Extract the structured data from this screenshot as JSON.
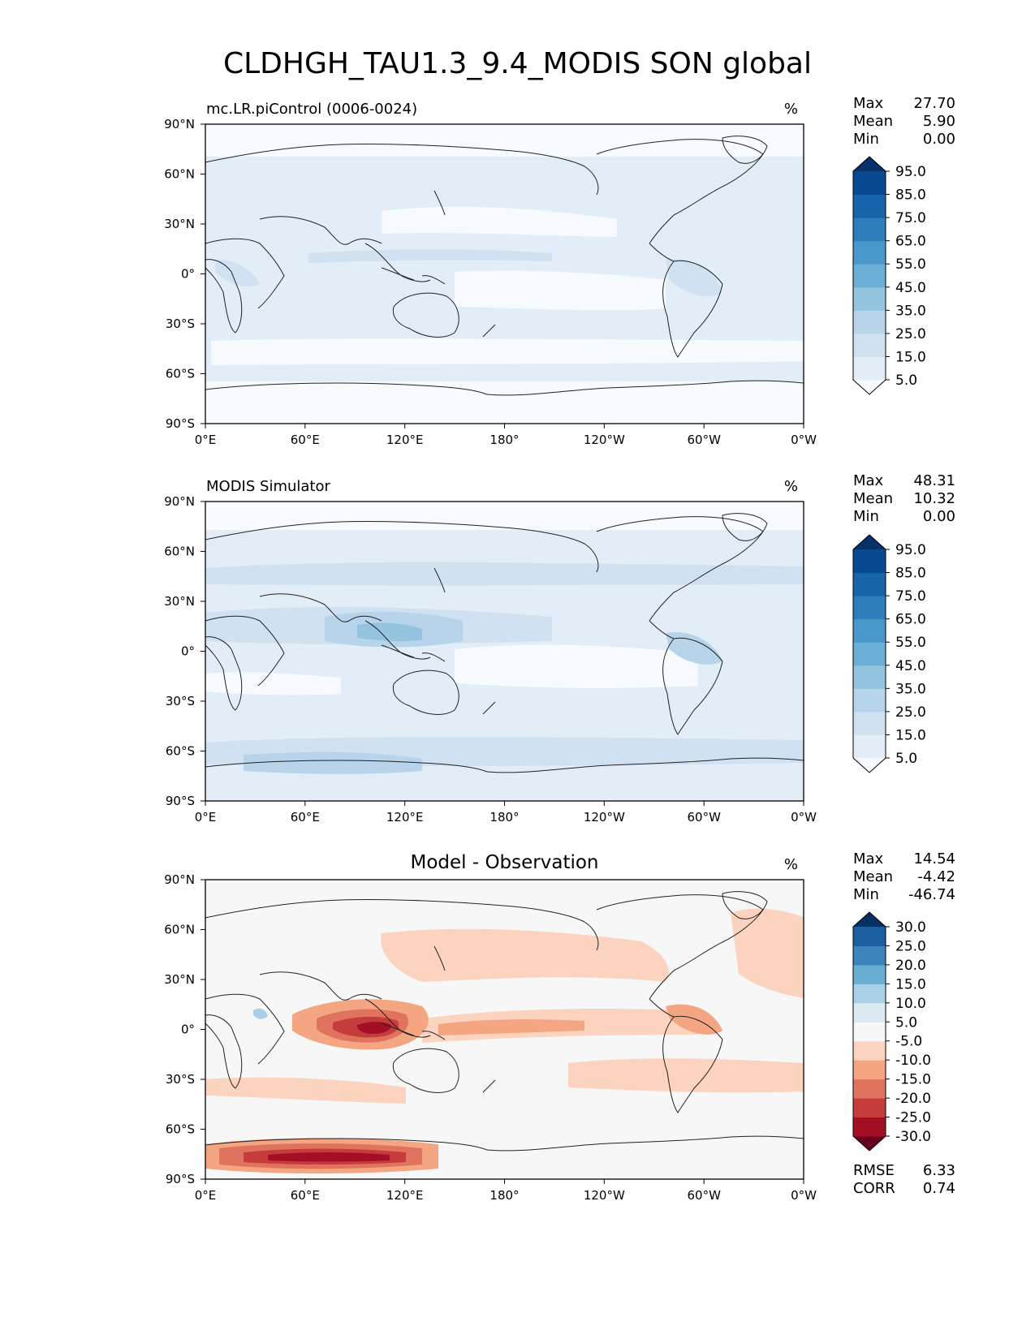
{
  "figure_title": "CLDHGH_TAU1.3_9.4_MODIS SON global",
  "axes": {
    "lat_ticks": [
      "90°N",
      "60°N",
      "30°N",
      "0°",
      "30°S",
      "60°S",
      "90°S"
    ],
    "lon_ticks": [
      "0°E",
      "60°E",
      "120°E",
      "180°",
      "120°W",
      "60°W",
      "0°W"
    ]
  },
  "chart_data": [
    {
      "type": "heatmap",
      "panel": "test",
      "left_title": "mc.LR.piControl (0006-0024)",
      "center_title": "",
      "units": "%",
      "stats": [
        {
          "label": "Max",
          "value": "27.70"
        },
        {
          "label": "Mean",
          "value": "5.90"
        },
        {
          "label": "Min",
          "value": "0.00"
        }
      ],
      "colorbar": {
        "colormap": "Blues",
        "levels": [
          "5.0",
          "15.0",
          "25.0",
          "35.0",
          "45.0",
          "55.0",
          "65.0",
          "75.0",
          "85.0",
          "95.0"
        ],
        "colors": [
          "#f7fbff",
          "#e2edf8",
          "#d0e1f2",
          "#b7d4ea",
          "#94c4df",
          "#6baed6",
          "#4a98c9",
          "#2e7ebc",
          "#1764ab",
          "#084a91",
          "#08306b"
        ],
        "extend": "both"
      },
      "xlim": [
        0,
        360
      ],
      "ylim": [
        -90,
        90
      ]
    },
    {
      "type": "heatmap",
      "panel": "reference",
      "left_title": "MODIS Simulator",
      "center_title": "",
      "units": "%",
      "stats": [
        {
          "label": "Max",
          "value": "48.31"
        },
        {
          "label": "Mean",
          "value": "10.32"
        },
        {
          "label": "Min",
          "value": "0.00"
        }
      ],
      "colorbar": {
        "colormap": "Blues",
        "levels": [
          "5.0",
          "15.0",
          "25.0",
          "35.0",
          "45.0",
          "55.0",
          "65.0",
          "75.0",
          "85.0",
          "95.0"
        ],
        "colors": [
          "#f7fbff",
          "#e2edf8",
          "#d0e1f2",
          "#b7d4ea",
          "#94c4df",
          "#6baed6",
          "#4a98c9",
          "#2e7ebc",
          "#1764ab",
          "#084a91",
          "#08306b"
        ],
        "extend": "both"
      },
      "xlim": [
        0,
        360
      ],
      "ylim": [
        -90,
        90
      ]
    },
    {
      "type": "heatmap",
      "panel": "difference",
      "left_title": "",
      "center_title": "Model - Observation",
      "units": "%",
      "stats": [
        {
          "label": "Max",
          "value": "14.54"
        },
        {
          "label": "Mean",
          "value": "-4.42"
        },
        {
          "label": "Min",
          "value": "-46.74"
        }
      ],
      "footer_stats": [
        {
          "label": "RMSE",
          "value": "6.33"
        },
        {
          "label": "CORR",
          "value": "0.74"
        }
      ],
      "colorbar": {
        "colormap": "RdBu_r",
        "levels": [
          "-30.0",
          "-25.0",
          "-20.0",
          "-15.0",
          "-10.0",
          "-5.0",
          "5.0",
          "10.0",
          "15.0",
          "20.0",
          "25.0",
          "30.0"
        ],
        "colors": [
          "#67001f",
          "#a50f26",
          "#c43c3c",
          "#e0735d",
          "#f4a582",
          "#fbd3bf",
          "#f7f7f7",
          "#dceaf2",
          "#a9d0e6",
          "#6aaed2",
          "#3b84bc",
          "#1c5fa0",
          "#053061"
        ],
        "extend": "both"
      },
      "xlim": [
        0,
        360
      ],
      "ylim": [
        -90,
        90
      ]
    }
  ]
}
